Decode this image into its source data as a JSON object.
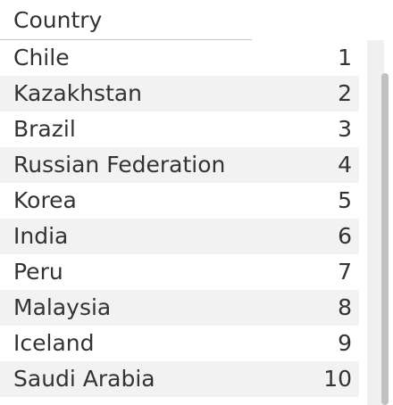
{
  "table": {
    "column_header": "Country",
    "rows": [
      {
        "country": "Chile",
        "rank": "1"
      },
      {
        "country": "Kazakhstan",
        "rank": "2"
      },
      {
        "country": "Brazil",
        "rank": "3"
      },
      {
        "country": "Russian Federation",
        "rank": "4"
      },
      {
        "country": "Korea",
        "rank": "5"
      },
      {
        "country": "India",
        "rank": "6"
      },
      {
        "country": "Peru",
        "rank": "7"
      },
      {
        "country": "Malaysia",
        "rank": "8"
      },
      {
        "country": "Iceland",
        "rank": "9"
      },
      {
        "country": "Saudi Arabia",
        "rank": "10"
      }
    ]
  },
  "colors": {
    "text": "#333333",
    "row_alt_background": "#f2f2f2",
    "scrollbar_track": "#f0f0f0",
    "scrollbar_thumb": "#c1c1c1"
  }
}
